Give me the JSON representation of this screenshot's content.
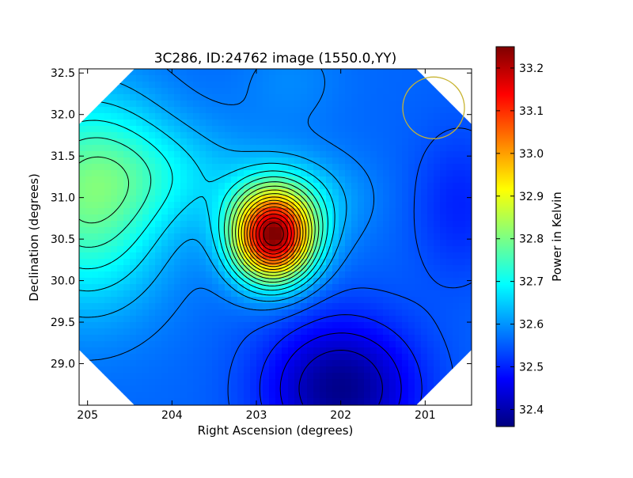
{
  "chart_data": {
    "type": "heatmap",
    "title": "3C286, ID:24762 image (1550.0,YY)",
    "xlabel": "Right Ascension (degrees)",
    "ylabel": "Declination (degrees)",
    "colorbar_label": "Power in Kelvin",
    "colormap": "jet",
    "x_range": [
      205.1,
      200.45
    ],
    "y_range": [
      28.5,
      32.55
    ],
    "x_ticks": [
      "205",
      "204",
      "203",
      "202",
      "201"
    ],
    "y_ticks": [
      "32.5",
      "32.0",
      "31.5",
      "31.0",
      "30.5",
      "30.0",
      "29.5",
      "29.0"
    ],
    "colorbar_range": [
      32.36,
      33.25
    ],
    "colorbar_ticks": [
      "33.2",
      "33.1",
      "33.0",
      "32.9",
      "32.8",
      "32.7",
      "32.6",
      "32.5",
      "32.4"
    ],
    "peak": {
      "ra": 202.8,
      "dec": 30.53,
      "value": 33.22
    },
    "minimum_region": {
      "ra": 202.0,
      "dec": 28.7,
      "value": 32.37
    },
    "secondary_high": {
      "ra": 205.0,
      "dec": 31.0,
      "value": 32.78
    },
    "beam_marker": {
      "ra": 200.9,
      "dec": 32.08,
      "color": "#c8b432"
    },
    "contours": "black"
  }
}
